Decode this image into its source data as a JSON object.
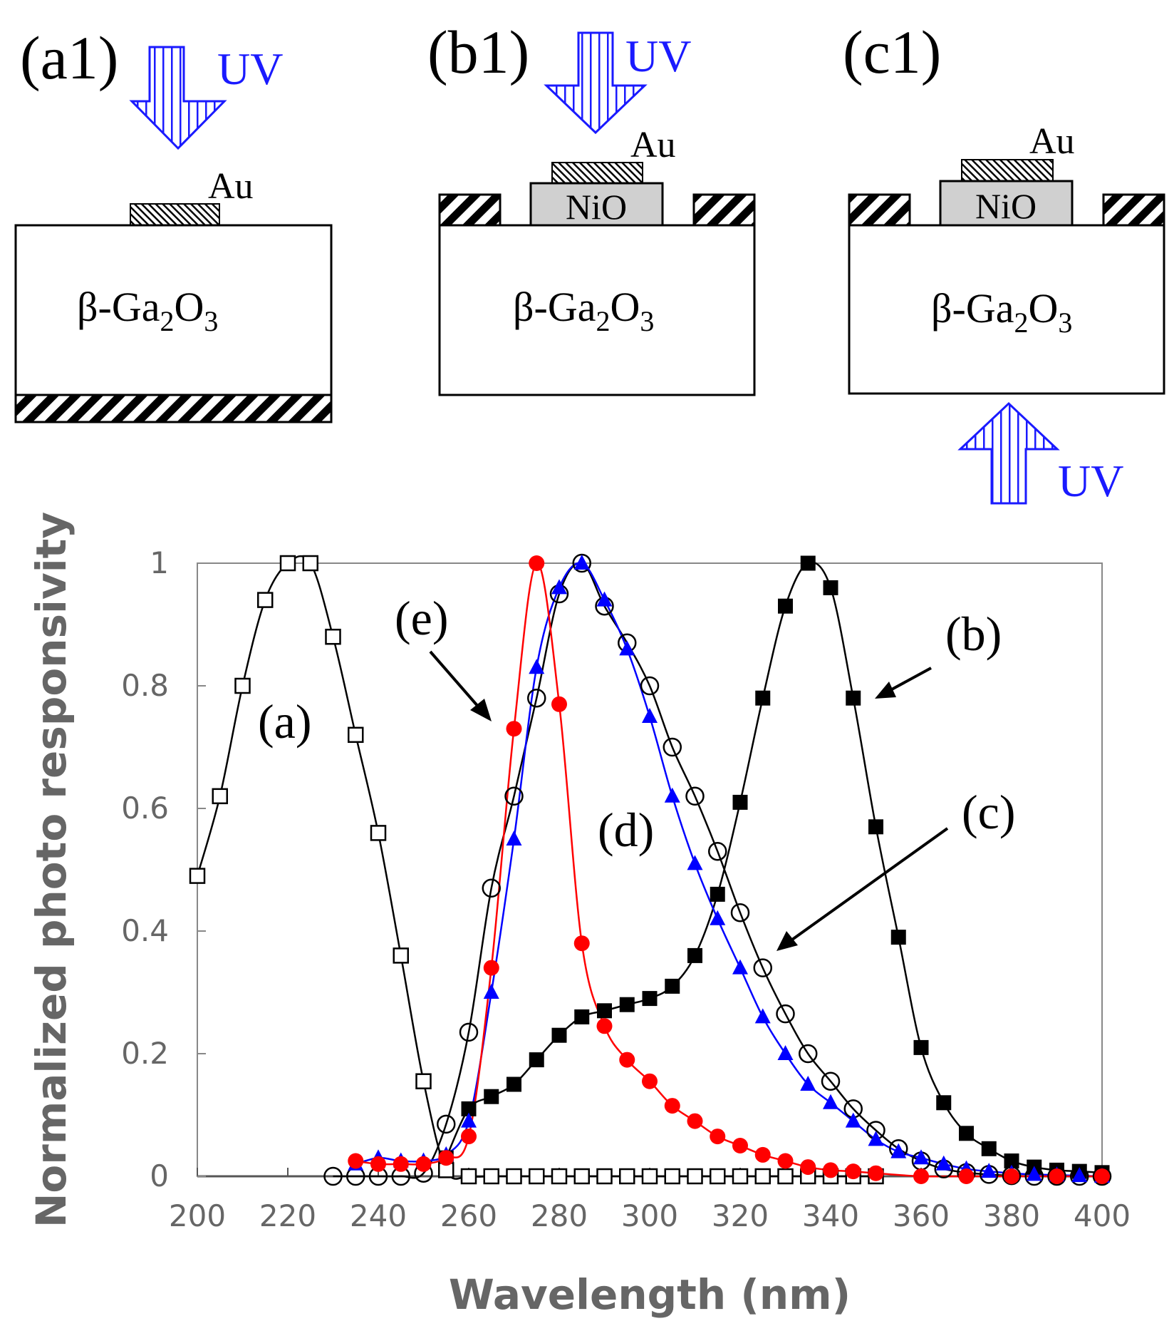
{
  "diagrams": {
    "a1": {
      "label": "(a1)",
      "uv": "UV",
      "electrode": "Au",
      "substrate_prefix": "β-Ga",
      "sub1": "2",
      "mid": "O",
      "sub2": "3"
    },
    "b1": {
      "label": "(b1)",
      "uv": "UV",
      "electrode": "Au",
      "layer": "NiO",
      "substrate_prefix": "β-Ga",
      "sub1": "2",
      "mid": "O",
      "sub2": "3"
    },
    "c1": {
      "label": "(c1)",
      "uv": "UV",
      "electrode": "Au",
      "layer": "NiO",
      "substrate_prefix": "β-Ga",
      "sub1": "2",
      "mid": "O",
      "sub2": "3"
    }
  },
  "colors": {
    "black": "#000000",
    "red": "#ff0000",
    "blue": "#0000ff",
    "uv": "#1a1aff",
    "axis": "#555555",
    "tick_text": "#666666",
    "layer_fill": "#d0d0d0"
  },
  "chart_data": {
    "type": "scatter",
    "xlabel": "Wavelength (nm)",
    "ylabel": "Normalized photo responsivity",
    "xlim": [
      200,
      400
    ],
    "ylim": [
      0,
      1
    ],
    "xticks": [
      "200",
      "220",
      "240",
      "260",
      "280",
      "300",
      "320",
      "340",
      "360",
      "380",
      "400"
    ],
    "yticks": [
      "0",
      "0.2",
      "0.4",
      "0.6",
      "0.8",
      "1"
    ],
    "series": [
      {
        "name": "a",
        "label": "(a)",
        "marker": "open-square",
        "color": "#000000",
        "x": [
          200,
          205,
          210,
          215,
          220,
          225,
          230,
          235,
          240,
          245,
          250,
          255,
          260,
          265,
          270,
          275,
          280,
          285,
          290,
          295,
          300,
          305,
          310,
          315,
          320,
          325,
          330,
          335,
          340,
          345,
          350
        ],
        "y": [
          0.49,
          0.62,
          0.8,
          0.94,
          1.0,
          1.0,
          0.88,
          0.72,
          0.56,
          0.36,
          0.155,
          0.01,
          0.0,
          0,
          0,
          0,
          0,
          0,
          0,
          0,
          0,
          0,
          0,
          0,
          0,
          0,
          0,
          0,
          0,
          0,
          0
        ]
      },
      {
        "name": "b",
        "label": "(b)",
        "marker": "filled-square",
        "color": "#000000",
        "x": [
          255,
          260,
          265,
          270,
          275,
          280,
          285,
          290,
          295,
          300,
          305,
          310,
          315,
          320,
          325,
          330,
          335,
          340,
          345,
          350,
          355,
          360,
          365,
          370,
          375,
          380,
          385,
          390,
          395,
          400
        ],
        "y": [
          0.03,
          0.11,
          0.13,
          0.15,
          0.19,
          0.23,
          0.26,
          0.27,
          0.28,
          0.29,
          0.31,
          0.36,
          0.46,
          0.61,
          0.78,
          0.93,
          1.0,
          0.96,
          0.78,
          0.57,
          0.39,
          0.21,
          0.12,
          0.07,
          0.045,
          0.025,
          0.015,
          0.01,
          0.008,
          0.006
        ]
      },
      {
        "name": "c",
        "label": "(c)",
        "marker": "open-circle",
        "color": "#000000",
        "x": [
          230,
          235,
          240,
          245,
          250,
          255,
          260,
          265,
          270,
          275,
          280,
          285,
          290,
          295,
          300,
          305,
          310,
          315,
          320,
          325,
          330,
          335,
          340,
          345,
          350,
          355,
          360,
          365,
          370,
          375,
          380,
          385,
          390,
          395,
          400
        ],
        "y": [
          0,
          0,
          0,
          0,
          0.005,
          0.085,
          0.235,
          0.47,
          0.62,
          0.78,
          0.95,
          1.0,
          0.93,
          0.87,
          0.8,
          0.7,
          0.62,
          0.53,
          0.43,
          0.34,
          0.265,
          0.2,
          0.155,
          0.11,
          0.075,
          0.045,
          0.025,
          0.012,
          0.006,
          0.003,
          0.001,
          0,
          0,
          0,
          0
        ]
      },
      {
        "name": "d",
        "label": "(d)",
        "marker": "filled-triangle",
        "color": "#0000ff",
        "x": [
          235,
          240,
          245,
          250,
          255,
          260,
          265,
          270,
          275,
          280,
          285,
          290,
          295,
          300,
          305,
          310,
          315,
          320,
          325,
          330,
          335,
          340,
          345,
          350,
          355,
          360,
          365,
          370,
          375,
          380,
          385,
          390,
          395,
          400
        ],
        "y": [
          0.02,
          0.03,
          0.025,
          0.025,
          0.035,
          0.09,
          0.3,
          0.55,
          0.83,
          0.96,
          1.0,
          0.94,
          0.86,
          0.75,
          0.62,
          0.51,
          0.42,
          0.34,
          0.26,
          0.2,
          0.15,
          0.12,
          0.09,
          0.06,
          0.04,
          0.03,
          0.02,
          0.012,
          0.008,
          0.005,
          0.003,
          0.002,
          0.001,
          0.0
        ]
      },
      {
        "name": "e",
        "label": "(e)",
        "marker": "filled-circle",
        "color": "#ff0000",
        "x": [
          235,
          240,
          245,
          250,
          255,
          260,
          265,
          270,
          275,
          280,
          285,
          290,
          295,
          300,
          305,
          310,
          315,
          320,
          325,
          330,
          335,
          340,
          345,
          350,
          360,
          370,
          380,
          390,
          400
        ],
        "y": [
          0.025,
          0.02,
          0.02,
          0.02,
          0.03,
          0.065,
          0.34,
          0.73,
          1.0,
          0.77,
          0.38,
          0.245,
          0.19,
          0.155,
          0.115,
          0.09,
          0.065,
          0.05,
          0.035,
          0.025,
          0.015,
          0.01,
          0.008,
          0.005,
          0.0,
          0.0,
          0.0,
          0.0,
          0.0
        ]
      }
    ],
    "annotations": [
      "(a)",
      "(b)",
      "(c)",
      "(d)",
      "(e)"
    ]
  }
}
